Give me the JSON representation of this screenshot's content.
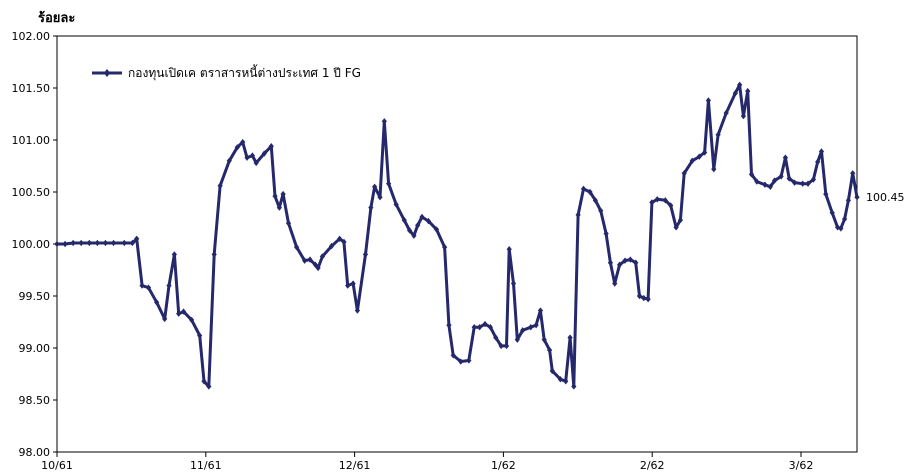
{
  "chart_data": {
    "type": "line",
    "ylabel": "ร้อยละ",
    "ylim": [
      98.0,
      102.0
    ],
    "y_ticks": [
      "98.00",
      "98.50",
      "99.00",
      "99.50",
      "100.00",
      "100.50",
      "101.00",
      "101.50",
      "102.00"
    ],
    "x_ticks": [
      "10/61",
      "11/61",
      "12/61",
      "1/62",
      "2/62",
      "3/62"
    ],
    "legend_position": "top-left",
    "end_label": "100.45",
    "colors": {
      "series": "#25286b",
      "axis": "#000000"
    },
    "series": [
      {
        "name": "กองทุนเปิดเค ตราสารหนี้ต่างประเทศ 1 ปี FG",
        "points": [
          [
            0.0,
            100.0
          ],
          [
            1.5,
            100.0
          ],
          [
            3.0,
            100.01
          ],
          [
            4.5,
            100.01
          ],
          [
            6.0,
            100.01
          ],
          [
            7.5,
            100.01
          ],
          [
            9.0,
            100.01
          ],
          [
            10.5,
            100.01
          ],
          [
            12.5,
            100.01
          ],
          [
            14.0,
            100.01
          ],
          [
            14.8,
            100.05
          ],
          [
            15.8,
            99.6
          ],
          [
            17.0,
            99.58
          ],
          [
            18.5,
            99.44
          ],
          [
            20.0,
            99.28
          ],
          [
            20.8,
            99.6
          ],
          [
            21.8,
            99.9
          ],
          [
            22.6,
            99.33
          ],
          [
            23.5,
            99.35
          ],
          [
            25.0,
            99.27
          ],
          [
            26.5,
            99.12
          ],
          [
            27.3,
            98.68
          ],
          [
            28.2,
            98.63
          ],
          [
            29.2,
            99.9
          ],
          [
            30.3,
            100.56
          ],
          [
            32.0,
            100.8
          ],
          [
            33.5,
            100.93
          ],
          [
            34.5,
            100.98
          ],
          [
            35.3,
            100.83
          ],
          [
            36.3,
            100.85
          ],
          [
            37.0,
            100.78
          ],
          [
            38.5,
            100.87
          ],
          [
            39.8,
            100.94
          ],
          [
            40.5,
            100.46
          ],
          [
            41.3,
            100.35
          ],
          [
            42.0,
            100.48
          ],
          [
            43.0,
            100.2
          ],
          [
            44.5,
            99.97
          ],
          [
            46.0,
            99.84
          ],
          [
            47.0,
            99.85
          ],
          [
            48.0,
            99.8
          ],
          [
            48.5,
            99.77
          ],
          [
            49.3,
            99.88
          ],
          [
            51.0,
            99.98
          ],
          [
            52.5,
            100.05
          ],
          [
            53.3,
            100.02
          ],
          [
            54.0,
            99.6
          ],
          [
            55.0,
            99.62
          ],
          [
            55.8,
            99.36
          ],
          [
            57.3,
            99.9
          ],
          [
            58.3,
            100.35
          ],
          [
            59.0,
            100.55
          ],
          [
            60.0,
            100.45
          ],
          [
            60.8,
            101.18
          ],
          [
            61.6,
            100.58
          ],
          [
            63.0,
            100.38
          ],
          [
            64.5,
            100.23
          ],
          [
            65.5,
            100.13
          ],
          [
            66.3,
            100.08
          ],
          [
            67.0,
            100.18
          ],
          [
            67.8,
            100.26
          ],
          [
            69.0,
            100.22
          ],
          [
            70.5,
            100.14
          ],
          [
            72.0,
            99.97
          ],
          [
            72.8,
            99.22
          ],
          [
            73.6,
            98.93
          ],
          [
            75.0,
            98.87
          ],
          [
            76.5,
            98.88
          ],
          [
            77.5,
            99.2
          ],
          [
            78.5,
            99.2
          ],
          [
            79.5,
            99.23
          ],
          [
            80.5,
            99.2
          ],
          [
            81.5,
            99.1
          ],
          [
            82.5,
            99.02
          ],
          [
            83.5,
            99.02
          ],
          [
            84.0,
            99.95
          ],
          [
            84.8,
            99.62
          ],
          [
            85.5,
            99.08
          ],
          [
            86.5,
            99.17
          ],
          [
            88.0,
            99.2
          ],
          [
            89.0,
            99.22
          ],
          [
            89.8,
            99.36
          ],
          [
            90.5,
            99.08
          ],
          [
            91.5,
            98.98
          ],
          [
            92.0,
            98.78
          ],
          [
            93.5,
            98.7
          ],
          [
            94.5,
            98.68
          ],
          [
            95.3,
            99.1
          ],
          [
            96.0,
            98.63
          ],
          [
            96.8,
            100.28
          ],
          [
            97.8,
            100.53
          ],
          [
            99.0,
            100.5
          ],
          [
            100.0,
            100.42
          ],
          [
            101.0,
            100.32
          ],
          [
            102.0,
            100.1
          ],
          [
            102.8,
            99.82
          ],
          [
            103.6,
            99.62
          ],
          [
            104.5,
            99.8
          ],
          [
            105.5,
            99.84
          ],
          [
            106.5,
            99.85
          ],
          [
            107.5,
            99.82
          ],
          [
            108.2,
            99.5
          ],
          [
            109.0,
            99.48
          ],
          [
            109.8,
            99.47
          ],
          [
            110.5,
            100.4
          ],
          [
            111.5,
            100.43
          ],
          [
            113.0,
            100.42
          ],
          [
            114.0,
            100.37
          ],
          [
            115.0,
            100.16
          ],
          [
            115.8,
            100.23
          ],
          [
            116.5,
            100.68
          ],
          [
            118.0,
            100.8
          ],
          [
            119.3,
            100.84
          ],
          [
            120.3,
            100.88
          ],
          [
            121.0,
            101.38
          ],
          [
            122.0,
            100.72
          ],
          [
            122.8,
            101.05
          ],
          [
            124.3,
            101.26
          ],
          [
            126.0,
            101.45
          ],
          [
            126.8,
            101.53
          ],
          [
            127.5,
            101.23
          ],
          [
            128.3,
            101.47
          ],
          [
            129.0,
            100.67
          ],
          [
            130.0,
            100.6
          ],
          [
            131.5,
            100.57
          ],
          [
            132.5,
            100.55
          ],
          [
            133.3,
            100.61
          ],
          [
            134.5,
            100.65
          ],
          [
            135.3,
            100.83
          ],
          [
            136.0,
            100.63
          ],
          [
            137.0,
            100.59
          ],
          [
            138.5,
            100.58
          ],
          [
            139.5,
            100.58
          ],
          [
            140.5,
            100.62
          ],
          [
            141.3,
            100.79
          ],
          [
            142.0,
            100.89
          ],
          [
            142.8,
            100.48
          ],
          [
            144.0,
            100.3
          ],
          [
            145.0,
            100.16
          ],
          [
            145.6,
            100.15
          ],
          [
            146.3,
            100.24
          ],
          [
            147.0,
            100.42
          ],
          [
            147.8,
            100.68
          ],
          [
            148.6,
            100.45
          ]
        ]
      }
    ]
  }
}
